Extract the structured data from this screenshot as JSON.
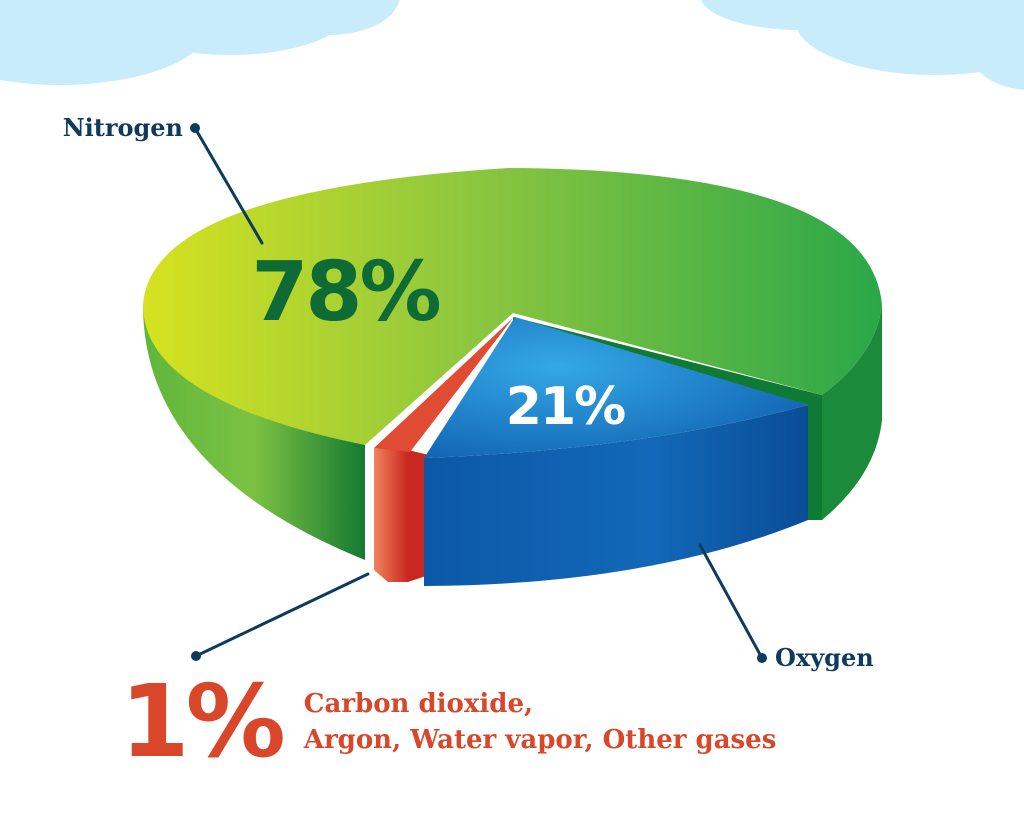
{
  "colors": {
    "nitrogen_light": "#d6e21f",
    "nitrogen_mid": "#7cc242",
    "nitrogen_dark": "#1e8c3a",
    "nitrogen_text": "#0f6b35",
    "oxygen_light": "#2a9ee0",
    "oxygen_dark": "#0c56a6",
    "other_light": "#f07a55",
    "other_dark": "#c8281f",
    "other_text": "#d9472b",
    "label_text": "#0d3b5e",
    "sky": "#c9ecfb"
  },
  "chart_data": {
    "type": "pie",
    "title": "",
    "slices": [
      {
        "name": "Nitrogen",
        "value": 78,
        "label": "78%",
        "color": "#7cc242"
      },
      {
        "name": "Oxygen",
        "value": 21,
        "label": "21%",
        "color": "#1d7ccb"
      },
      {
        "name": "Carbon dioxide, Argon, Water vapor, Other gases",
        "value": 1,
        "label": "1%",
        "color": "#e0533a"
      }
    ]
  },
  "callouts": {
    "nitrogen": "Nitrogen",
    "oxygen": "Oxygen",
    "other_line1": "Carbon dioxide,",
    "other_line2": "Argon, Water vapor, Other gases"
  }
}
